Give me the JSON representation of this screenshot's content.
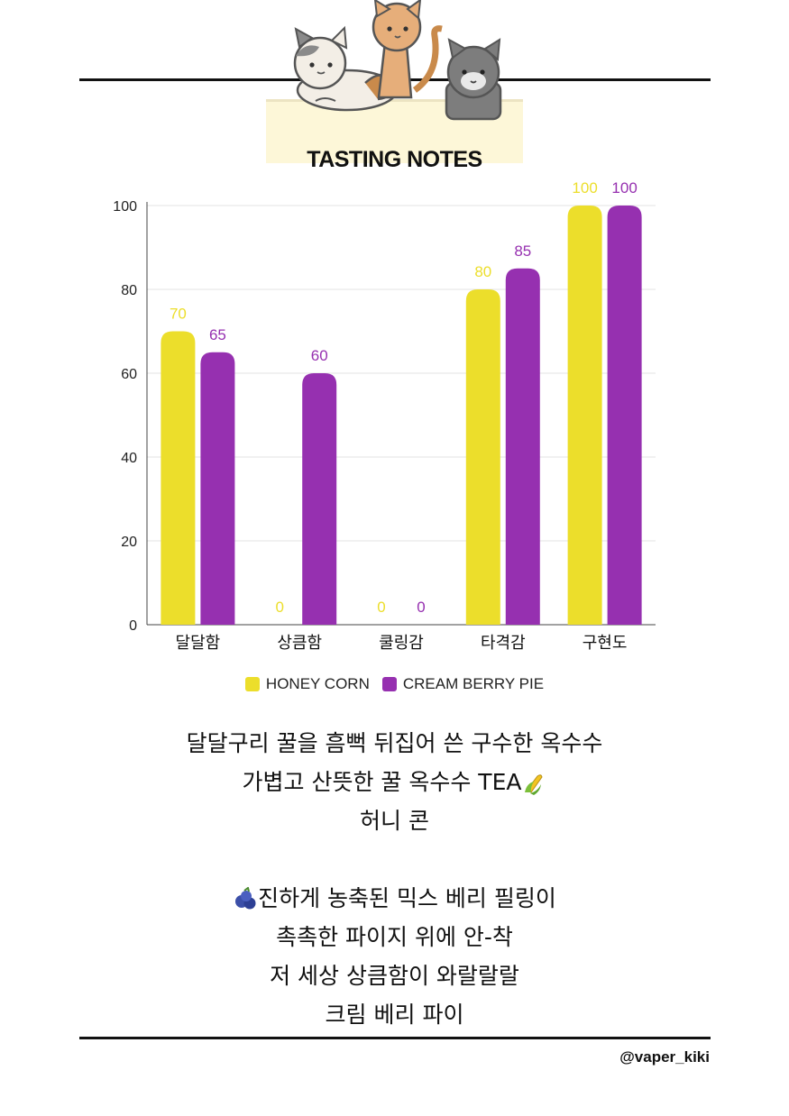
{
  "chart_data": {
    "type": "bar",
    "title": "TASTING NOTES",
    "categories": [
      "달달함",
      "상큼함",
      "쿨링감",
      "타격감",
      "구현도"
    ],
    "series": [
      {
        "name": "HONEY CORN",
        "values": [
          70,
          0,
          0,
          80,
          100
        ],
        "color": "#ecde2b"
      },
      {
        "name": "CREAM BERRY PIE",
        "values": [
          65,
          60,
          0,
          85,
          100
        ],
        "color": "#9630b0"
      }
    ],
    "yticks": [
      0,
      20,
      40,
      60,
      80,
      100
    ],
    "ylim": [
      0,
      100
    ],
    "grid": true,
    "legend_position": "bottom"
  },
  "description": {
    "lines": [
      "달달구리 꿀을 흠뻑 뒤집어 쓴 구수한 옥수수",
      "가볍고 산뜻한 꿀 옥수수 TEA",
      "허니 콘",
      "",
      "진하게 농축된 믹스 베리 필링이",
      "촉촉한 파이지 위에 안-착",
      "저 세상 상큼함이 와랄랄랄",
      "크림 베리 파이"
    ]
  },
  "icons": {
    "header_illustration": "three-cats-illustration",
    "corn": "corn-icon",
    "blueberry": "blueberry-icon"
  },
  "handle": "@vaper_kiki"
}
